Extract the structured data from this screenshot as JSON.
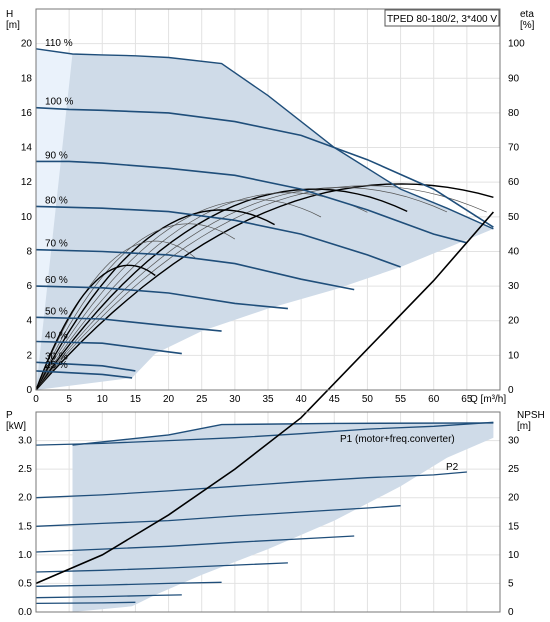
{
  "chart_data": [
    {
      "type": "line",
      "title": "TPED 80-180/2, 3*400 V",
      "xlabel": "Q [m³/h]",
      "ylabel": "H\n[m]",
      "y2label": "eta\n[%]",
      "xlim": [
        0,
        70
      ],
      "ylim": [
        0,
        22
      ],
      "y2lim": [
        0,
        110
      ],
      "x_ticks": [
        "0",
        "5",
        "10",
        "15",
        "20",
        "25",
        "30",
        "35",
        "40",
        "45",
        "50",
        "55",
        "60",
        "65"
      ],
      "y_ticks": [
        "0",
        "2",
        "4",
        "6",
        "8",
        "10",
        "12",
        "14",
        "16",
        "18",
        "20"
      ],
      "y2_ticks": [
        "0",
        "10",
        "20",
        "30",
        "40",
        "50",
        "60",
        "70",
        "80",
        "90",
        "100"
      ],
      "grid": true,
      "region_color": "#cfdbe8",
      "head_curves": [
        {
          "label": "110 %",
          "x": [
            0,
            5.5,
            10,
            15,
            20,
            28,
            35,
            45,
            55,
            62,
            69
          ],
          "y": [
            19.7,
            19.4,
            19.35,
            19.3,
            19.2,
            18.85,
            17.0,
            14.0,
            11.6,
            10.5,
            9.3
          ]
        },
        {
          "label": "100 %",
          "x": [
            0,
            5,
            10,
            20,
            30,
            40,
            50,
            60,
            69
          ],
          "y": [
            16.3,
            16.2,
            16.15,
            16.0,
            15.5,
            14.7,
            13.3,
            11.6,
            9.4
          ]
        },
        {
          "label": "90 %",
          "x": [
            0,
            5,
            10,
            20,
            30,
            40,
            50,
            60,
            65
          ],
          "y": [
            13.2,
            13.2,
            13.1,
            12.8,
            12.4,
            11.6,
            10.4,
            9.0,
            8.5
          ]
        },
        {
          "label": "80 %",
          "x": [
            0,
            10,
            20,
            30,
            40,
            50,
            55
          ],
          "y": [
            10.6,
            10.5,
            10.3,
            9.8,
            9.0,
            7.8,
            7.1
          ]
        },
        {
          "label": "70 %",
          "x": [
            0,
            10,
            20,
            30,
            40,
            48
          ],
          "y": [
            8.1,
            8.0,
            7.8,
            7.3,
            6.4,
            5.8
          ]
        },
        {
          "label": "60 %",
          "x": [
            0,
            10,
            20,
            30,
            38
          ],
          "y": [
            6.0,
            5.9,
            5.6,
            5.0,
            4.7
          ]
        },
        {
          "label": "50 %",
          "x": [
            0,
            10,
            20,
            28
          ],
          "y": [
            4.2,
            4.1,
            3.7,
            3.4
          ]
        },
        {
          "label": "40 %",
          "x": [
            0,
            10,
            18,
            22
          ],
          "y": [
            2.8,
            2.7,
            2.3,
            2.1
          ]
        },
        {
          "label": "30 %",
          "x": [
            0,
            10,
            15
          ],
          "y": [
            1.6,
            1.4,
            1.1
          ]
        },
        {
          "label": "25 %",
          "x": [
            0,
            10,
            14.5
          ],
          "y": [
            1.1,
            0.9,
            0.7
          ]
        }
      ],
      "envelope": {
        "x": [
          0,
          0,
          5.5,
          10,
          15,
          20,
          28,
          35,
          45,
          55,
          62,
          69,
          69,
          55,
          45,
          35,
          25,
          18,
          14.5,
          0
        ],
        "y": [
          0,
          19.7,
          19.4,
          19.35,
          19.3,
          19.2,
          18.85,
          17.0,
          14.0,
          11.6,
          10.5,
          9.3,
          9.3,
          7.1,
          5.8,
          4.7,
          3.4,
          2.1,
          0.7,
          0
        ]
      },
      "eta_peaks": [
        {
          "x_peak": 55,
          "eta_peak": 59.5,
          "x_end": 69
        },
        {
          "x_peak": 50,
          "eta_peak": 59.0,
          "x_end": 68
        },
        {
          "x_peak": 46,
          "eta_peak": 58.5,
          "x_end": 62
        },
        {
          "x_peak": 42,
          "eta_peak": 58.0,
          "x_end": 56
        },
        {
          "x_peak": 38,
          "eta_peak": 57.0,
          "x_end": 50
        },
        {
          "x_peak": 33,
          "eta_peak": 55.0,
          "x_end": 43
        },
        {
          "x_peak": 28,
          "eta_peak": 52.0,
          "x_end": 36
        },
        {
          "x_peak": 23,
          "eta_peak": 48.0,
          "x_end": 30
        },
        {
          "x_peak": 18,
          "eta_peak": 43.0,
          "x_end": 24
        },
        {
          "x_peak": 14,
          "eta_peak": 36.0,
          "x_end": 18
        }
      ]
    },
    {
      "type": "line",
      "xlim": [
        0,
        70
      ],
      "ylim": [
        0,
        3.5
      ],
      "y2lim": [
        0,
        35
      ],
      "ylabel": "P\n[kW]",
      "y2label": "NPSH\n[m]",
      "y_ticks": [
        "0.0",
        "0.5",
        "1.0",
        "1.5",
        "2.0",
        "2.5",
        "3.0"
      ],
      "y2_ticks": [
        "0",
        "5",
        "10",
        "15",
        "20",
        "25",
        "30"
      ],
      "grid": true,
      "annotations": [
        "P1 (motor+freq.converter)",
        "P2"
      ],
      "p1_curves": [
        {
          "x": [
            5.5,
            20,
            28,
            45,
            69
          ],
          "y": [
            2.92,
            3.1,
            3.28,
            3.3,
            3.31
          ]
        },
        {
          "x": [
            0,
            10,
            20,
            30,
            40,
            50,
            60,
            69
          ],
          "y": [
            2.92,
            2.95,
            3.0,
            3.05,
            3.12,
            3.2,
            3.25,
            3.32
          ]
        },
        {
          "x": [
            0,
            10,
            20,
            30,
            40,
            50,
            60,
            65
          ],
          "y": [
            2.0,
            2.05,
            2.12,
            2.2,
            2.28,
            2.35,
            2.4,
            2.45
          ]
        },
        {
          "x": [
            0,
            10,
            20,
            30,
            40,
            50,
            55
          ],
          "y": [
            1.5,
            1.55,
            1.6,
            1.68,
            1.75,
            1.82,
            1.86
          ]
        },
        {
          "x": [
            0,
            10,
            20,
            30,
            40,
            48
          ],
          "y": [
            1.05,
            1.1,
            1.15,
            1.22,
            1.28,
            1.33
          ]
        },
        {
          "x": [
            0,
            10,
            20,
            30,
            38
          ],
          "y": [
            0.7,
            0.73,
            0.77,
            0.82,
            0.86
          ]
        },
        {
          "x": [
            0,
            10,
            20,
            28
          ],
          "y": [
            0.45,
            0.47,
            0.5,
            0.52
          ]
        },
        {
          "x": [
            0,
            10,
            18,
            22
          ],
          "y": [
            0.25,
            0.27,
            0.29,
            0.3
          ]
        },
        {
          "x": [
            0,
            10,
            15
          ],
          "y": [
            0.15,
            0.16,
            0.17
          ]
        }
      ],
      "npsh_curve": {
        "x": [
          0,
          10,
          20,
          30,
          40,
          50,
          60,
          69
        ],
        "y": [
          0.5,
          1.0,
          1.7,
          2.5,
          3.4,
          4.6,
          5.8,
          7.0
        ]
      },
      "envelope": {
        "x": [
          5.5,
          20,
          28,
          45,
          69,
          69,
          62,
          55,
          45,
          35,
          25,
          18,
          14.5,
          5.5,
          5.5
        ],
        "y": [
          2.92,
          3.1,
          3.28,
          3.3,
          3.31,
          3.05,
          2.7,
          2.2,
          1.6,
          1.1,
          0.65,
          0.3,
          0.1,
          0.0,
          2.92
        ]
      }
    }
  ]
}
